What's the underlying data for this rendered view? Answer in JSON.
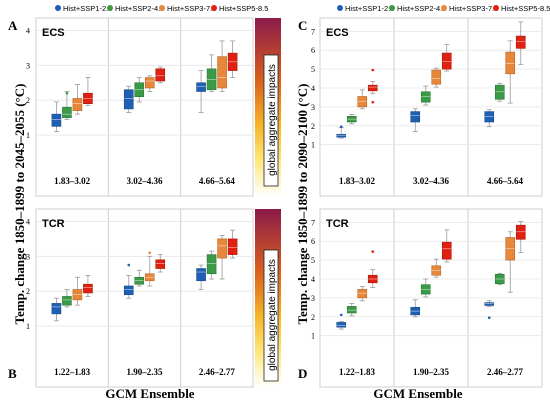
{
  "figure": {
    "xlabel": "GCM Ensemble",
    "ylabel_left": "Temp. change 1850–1899 to 2045–2055 (°C)",
    "ylabel_right": "Temp. change 1850–1899 to 2090–2100 (°C)",
    "bar_text": "global aggregate impacts",
    "legend": [
      {
        "name": "Hist+SSP1-2.6",
        "color": "#1f5fb4"
      },
      {
        "name": "Hist+SSP2-4.5",
        "color": "#3a9a45"
      },
      {
        "name": "Hist+SSP3-7.0",
        "color": "#e6873a"
      },
      {
        "name": "Hist+SSP5-8.5",
        "color": "#e02010"
      }
    ],
    "gradient_colors": [
      "#8b1a4a",
      "#d9601e",
      "#f6b526",
      "#ffe77a",
      "#ffffff"
    ]
  },
  "chart_data": [
    {
      "panel": "A",
      "title": "ECS",
      "type": "box",
      "groups": [
        "1.83–3.02",
        "3.02–4.36",
        "4.66–5.64"
      ],
      "ylim": [
        0.4,
        4.3
      ],
      "yticks": [
        1,
        2,
        3,
        4
      ],
      "boxes": [
        [
          {
            "min": 1.1,
            "q1": 1.25,
            "med": 1.45,
            "q3": 1.6,
            "max": 1.95
          },
          {
            "min": 1.45,
            "q1": 1.5,
            "med": 1.6,
            "q3": 1.8,
            "max": 2.25,
            "out": [
              2.2
            ]
          },
          {
            "min": 1.6,
            "q1": 1.7,
            "med": 1.9,
            "q3": 2.05,
            "max": 2.45
          },
          {
            "min": 1.85,
            "q1": 1.9,
            "med": 2.05,
            "q3": 2.2,
            "max": 2.65
          }
        ],
        [
          {
            "min": 1.65,
            "q1": 1.75,
            "med": 2.05,
            "q3": 2.3,
            "max": 2.4
          },
          {
            "min": 1.95,
            "q1": 2.1,
            "med": 2.3,
            "q3": 2.5,
            "max": 2.65
          },
          {
            "min": 2.25,
            "q1": 2.35,
            "med": 2.55,
            "q3": 2.65,
            "max": 2.7
          },
          {
            "min": 2.5,
            "q1": 2.55,
            "med": 2.7,
            "q3": 2.9,
            "max": 2.95
          }
        ],
        [
          {
            "min": 1.65,
            "q1": 2.25,
            "med": 2.4,
            "q3": 2.5,
            "max": 2.85
          },
          {
            "min": 2.25,
            "q1": 2.3,
            "med": 2.6,
            "q3": 2.9,
            "max": 3.3
          },
          {
            "min": 2.25,
            "q1": 2.35,
            "med": 2.65,
            "q3": 3.25,
            "max": 3.7
          },
          {
            "min": 2.65,
            "q1": 2.85,
            "med": 3.1,
            "q3": 3.35,
            "max": 3.7
          }
        ]
      ]
    },
    {
      "panel": "B",
      "title": "TCR",
      "type": "box",
      "groups": [
        "1.22–1.83",
        "1.90–2.35",
        "2.46–2.77"
      ],
      "ylim": [
        0.4,
        4.3
      ],
      "yticks": [
        1,
        2,
        3,
        4
      ],
      "boxes": [
        [
          {
            "min": 1.15,
            "q1": 1.35,
            "med": 1.55,
            "q3": 1.65,
            "max": 1.8
          },
          {
            "min": 1.55,
            "q1": 1.6,
            "med": 1.75,
            "q3": 1.85,
            "max": 2.05
          },
          {
            "min": 1.6,
            "q1": 1.75,
            "med": 1.9,
            "q3": 2.05,
            "max": 2.4
          },
          {
            "min": 1.85,
            "q1": 1.95,
            "med": 2.1,
            "q3": 2.2,
            "max": 2.45
          }
        ],
        [
          {
            "min": 1.8,
            "q1": 1.9,
            "med": 2.05,
            "q3": 2.15,
            "max": 2.45,
            "out": [
              2.75
            ]
          },
          {
            "min": 2.15,
            "q1": 2.2,
            "med": 2.3,
            "q3": 2.4,
            "max": 2.6
          },
          {
            "min": 2.15,
            "q1": 2.3,
            "med": 2.4,
            "q3": 2.5,
            "max": 3.0,
            "out": [
              3.1
            ]
          },
          {
            "min": 2.55,
            "q1": 2.65,
            "med": 2.8,
            "q3": 2.9,
            "max": 3.05
          }
        ],
        [
          {
            "min": 2.05,
            "q1": 2.3,
            "med": 2.55,
            "q3": 2.65,
            "max": 2.75
          },
          {
            "min": 2.35,
            "q1": 2.5,
            "med": 2.8,
            "q3": 3.05,
            "max": 3.15
          },
          {
            "min": 2.35,
            "q1": 2.95,
            "med": 3.3,
            "q3": 3.5,
            "max": 3.6
          },
          {
            "min": 2.95,
            "q1": 3.05,
            "med": 3.25,
            "q3": 3.5,
            "max": 3.75
          }
        ]
      ]
    },
    {
      "panel": "C",
      "title": "ECS",
      "type": "box",
      "groups": [
        "1.83–3.02",
        "3.02–4.36",
        "4.66–5.64"
      ],
      "ylim": [
        0.4,
        7.6
      ],
      "yticks": [
        1,
        2,
        3,
        4,
        5,
        6,
        7
      ],
      "boxes": [
        [
          {
            "min": 1.35,
            "q1": 1.4,
            "med": 1.5,
            "q3": 1.55,
            "max": 1.9,
            "out": [
              1.95
            ]
          },
          {
            "min": 2.1,
            "q1": 2.2,
            "med": 2.35,
            "q3": 2.5,
            "max": 2.6
          },
          {
            "min": 2.9,
            "q1": 3.0,
            "med": 3.3,
            "q3": 3.55,
            "max": 3.9
          },
          {
            "min": 3.7,
            "q1": 3.85,
            "med": 4.05,
            "q3": 4.15,
            "max": 4.35,
            "out": [
              4.95,
              3.25
            ]
          }
        ],
        [
          {
            "min": 1.7,
            "q1": 2.2,
            "med": 2.55,
            "q3": 2.75,
            "max": 2.9
          },
          {
            "min": 3.1,
            "q1": 3.25,
            "med": 3.55,
            "q3": 3.8,
            "max": 4.1
          },
          {
            "min": 4.05,
            "q1": 4.2,
            "med": 4.5,
            "q3": 4.95,
            "max": 5.05
          },
          {
            "min": 4.9,
            "q1": 5.0,
            "med": 5.4,
            "q3": 5.85,
            "max": 6.3
          }
        ],
        [
          {
            "min": 1.95,
            "q1": 2.2,
            "med": 2.5,
            "q3": 2.75,
            "max": 2.85
          },
          {
            "min": 3.3,
            "q1": 3.4,
            "med": 3.8,
            "q3": 4.15,
            "max": 4.25
          },
          {
            "min": 3.2,
            "q1": 4.75,
            "med": 5.3,
            "q3": 5.9,
            "max": 6.5
          },
          {
            "min": 5.25,
            "q1": 6.1,
            "med": 6.45,
            "q3": 6.75,
            "max": 7.5
          }
        ]
      ]
    },
    {
      "panel": "D",
      "title": "TCR",
      "type": "box",
      "groups": [
        "1.22–1.83",
        "1.90–2.35",
        "2.46–2.77"
      ],
      "ylim": [
        0.4,
        7.6
      ],
      "yticks": [
        1,
        2,
        3,
        4,
        5,
        6,
        7
      ],
      "boxes": [
        [
          {
            "min": 1.35,
            "q1": 1.45,
            "med": 1.55,
            "q3": 1.7,
            "max": 1.75,
            "out": [
              2.1
            ]
          },
          {
            "min": 2.05,
            "q1": 2.2,
            "med": 2.35,
            "q3": 2.55,
            "max": 2.7
          },
          {
            "min": 2.85,
            "q1": 3.0,
            "med": 3.25,
            "q3": 3.45,
            "max": 3.6,
            "out": [
              3.05
            ]
          },
          {
            "min": 3.55,
            "q1": 3.8,
            "med": 4.0,
            "q3": 4.2,
            "max": 4.5,
            "out": [
              5.45
            ]
          }
        ],
        [
          {
            "min": 2.0,
            "q1": 2.1,
            "med": 2.3,
            "q3": 2.5,
            "max": 2.9
          },
          {
            "min": 3.05,
            "q1": 3.2,
            "med": 3.45,
            "q3": 3.7,
            "max": 4.0
          },
          {
            "min": 4.1,
            "q1": 4.2,
            "med": 4.45,
            "q3": 4.7,
            "max": 5.05
          },
          {
            "min": 4.9,
            "q1": 5.05,
            "med": 5.6,
            "q3": 5.95,
            "max": 6.6
          }
        ],
        [
          {
            "min": 2.55,
            "q1": 2.6,
            "med": 2.7,
            "q3": 2.75,
            "max": 2.85,
            "out": [
              1.95
            ]
          },
          {
            "min": 3.7,
            "q1": 3.75,
            "med": 4.0,
            "q3": 4.25,
            "max": 4.3
          },
          {
            "min": 3.3,
            "q1": 5.0,
            "med": 5.6,
            "q3": 6.2,
            "max": 6.5
          },
          {
            "min": 5.4,
            "q1": 6.1,
            "med": 6.5,
            "q3": 6.85,
            "max": 7.05
          }
        ]
      ]
    }
  ]
}
